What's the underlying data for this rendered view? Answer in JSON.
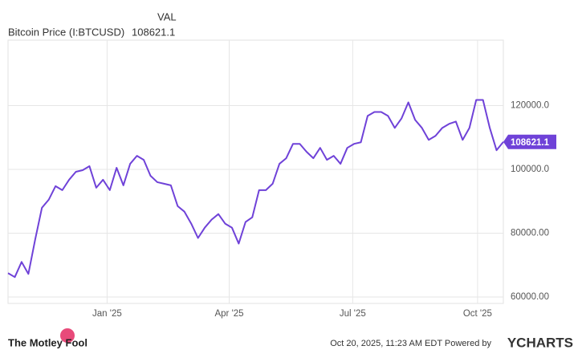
{
  "chart_data": {
    "type": "line",
    "column_header": "VAL",
    "series": [
      {
        "name": "Bitcoin Price (I:BTCUSD)",
        "color": "#6f42d8",
        "values": [
          67500,
          66250,
          71000,
          67250,
          78000,
          88000,
          90500,
          94750,
          93500,
          96750,
          99250,
          99750,
          101000,
          94250,
          96750,
          93500,
          100500,
          95000,
          101750,
          104250,
          103000,
          98000,
          96000,
          95500,
          95000,
          88500,
          86750,
          83000,
          78500,
          81750,
          84250,
          86000,
          83000,
          81750,
          76750,
          83500,
          85000,
          93500,
          93500,
          95500,
          101750,
          103500,
          108000,
          108000,
          105500,
          103500,
          106750,
          103000,
          104250,
          101750,
          106750,
          108000,
          108500,
          116750,
          118000,
          118000,
          116750,
          113000,
          116000,
          121000,
          115500,
          113000,
          109250,
          110500,
          113000,
          114250,
          115000,
          109250,
          113000,
          121750,
          121750,
          113000,
          106000,
          108621.1
        ]
      }
    ],
    "xlim": [
      0,
      73
    ],
    "xticks": [
      {
        "value": 14.6,
        "label": "Jan '25"
      },
      {
        "value": 32.6,
        "label": "Apr '25"
      },
      {
        "value": 50.8,
        "label": "Jul '25"
      },
      {
        "value": 69.2,
        "label": "Oct '25"
      }
    ],
    "ylim": [
      58000,
      140500
    ],
    "yticks": [
      {
        "value": 60000,
        "label": "60000.00"
      },
      {
        "value": 80000,
        "label": "80000.00"
      },
      {
        "value": 100000,
        "label": "100000.0"
      },
      {
        "value": 120000,
        "label": "120000.0"
      }
    ],
    "grid": true,
    "brand_left": "The Motley Fool",
    "timestamp": "Oct 20, 2025, 11:23 AM EDT Powered by",
    "brand_right": "YCHARTS"
  }
}
